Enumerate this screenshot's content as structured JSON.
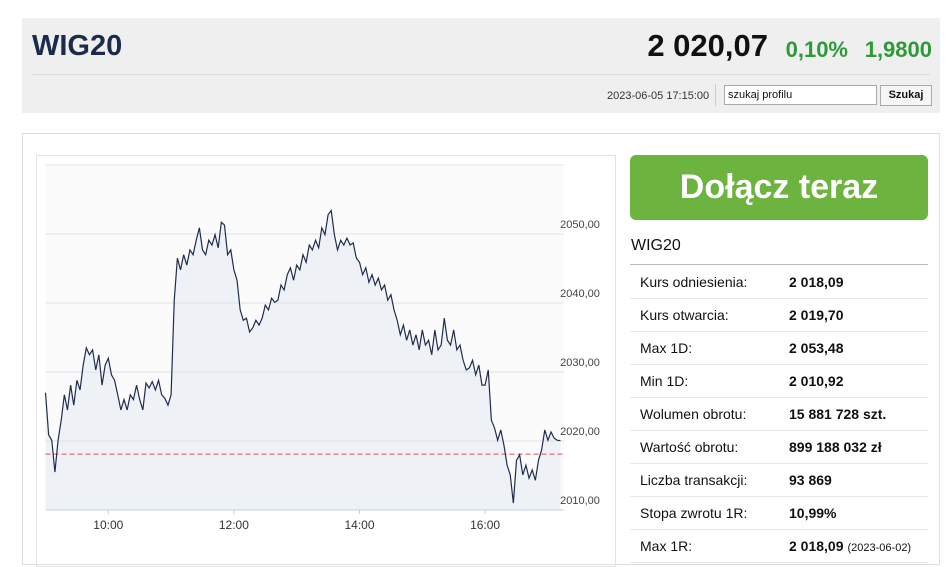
{
  "header": {
    "title": "WIG20",
    "price": "2 020,07",
    "change_pct": "0,10%",
    "change": "1,9800",
    "timestamp": "2023-06-05 17:15:00",
    "search_text": "szukaj profilu",
    "search_button": "Szukaj"
  },
  "cta": "Dołącz teraz",
  "stats": {
    "title": "WIG20",
    "rows": [
      {
        "label": "Kurs odniesienia:",
        "value": "2 018,09"
      },
      {
        "label": "Kurs otwarcia:",
        "value": "2 019,70"
      },
      {
        "label": "Max 1D:",
        "value": "2 053,48"
      },
      {
        "label": "Min 1D:",
        "value": "2 010,92"
      },
      {
        "label": "Wolumen obrotu:",
        "value": "15 881 728 szt."
      },
      {
        "label": "Wartość obrotu:",
        "value": "899 188 032 zł"
      },
      {
        "label": "Liczba transakcji:",
        "value": "93 869"
      },
      {
        "label": "Stopa zwrotu 1R:",
        "value": "10,99%"
      },
      {
        "label": "Max 1R:",
        "value": "2 018,09",
        "note": "(2023-06-02)"
      }
    ]
  },
  "chart_data": {
    "type": "line",
    "x": [
      540,
      543,
      546,
      549,
      552,
      555,
      558,
      561,
      564,
      567,
      570,
      573,
      576,
      579,
      582,
      585,
      588,
      591,
      594,
      597,
      600,
      603,
      606,
      609,
      612,
      615,
      618,
      621,
      624,
      627,
      630,
      633,
      636,
      639,
      642,
      645,
      648,
      651,
      654,
      657,
      660,
      663,
      666,
      669,
      672,
      675,
      678,
      681,
      684,
      687,
      690,
      693,
      696,
      699,
      702,
      705,
      708,
      711,
      714,
      717,
      720,
      723,
      726,
      729,
      732,
      735,
      738,
      741,
      744,
      747,
      750,
      753,
      756,
      759,
      762,
      765,
      768,
      771,
      774,
      777,
      780,
      783,
      786,
      789,
      792,
      795,
      798,
      801,
      804,
      807,
      810,
      813,
      816,
      819,
      822,
      825,
      828,
      831,
      834,
      837,
      840,
      843,
      846,
      849,
      852,
      855,
      858,
      861,
      864,
      867,
      870,
      873,
      876,
      879,
      882,
      885,
      888,
      891,
      894,
      897,
      900,
      903,
      906,
      909,
      912,
      915,
      918,
      921,
      924,
      927,
      930,
      933,
      936,
      939,
      942,
      945,
      948,
      951,
      954,
      957,
      960,
      963,
      966,
      969,
      972,
      975,
      978,
      981,
      984,
      987,
      990,
      993,
      996,
      999,
      1002,
      1005,
      1008,
      1011,
      1014,
      1017,
      1020,
      1023,
      1026,
      1029,
      1032
    ],
    "series": [
      {
        "name": "WIG20",
        "color": "#1f2d4d",
        "values": [
          2027.0,
          2020.9,
          2020.1,
          2015.5,
          2020.1,
          2023.0,
          2026.7,
          2024.5,
          2028.1,
          2025.2,
          2028.8,
          2027.4,
          2031.0,
          2033.5,
          2032.5,
          2033.2,
          2030.3,
          2032.5,
          2028.1,
          2031.0,
          2032.0,
          2029.6,
          2028.8,
          2026.7,
          2024.5,
          2026.0,
          2024.5,
          2026.7,
          2026.0,
          2028.1,
          2026.0,
          2024.5,
          2028.4,
          2027.7,
          2028.6,
          2027.4,
          2028.8,
          2026.7,
          2026.2,
          2025.2,
          2026.7,
          2040.4,
          2046.5,
          2044.8,
          2047.0,
          2045.5,
          2047.7,
          2047.0,
          2049.1,
          2050.9,
          2047.7,
          2047.0,
          2049.1,
          2048.4,
          2049.9,
          2048.0,
          2051.7,
          2051.3,
          2047.0,
          2047.7,
          2044.8,
          2043.3,
          2039.0,
          2037.5,
          2037.8,
          2035.8,
          2036.4,
          2037.5,
          2036.8,
          2037.8,
          2039.7,
          2039.0,
          2040.7,
          2040.1,
          2040.4,
          2042.6,
          2041.9,
          2044.1,
          2045.1,
          2043.3,
          2045.5,
          2044.8,
          2047.0,
          2045.9,
          2048.4,
          2047.7,
          2049.1,
          2048.0,
          2050.9,
          2049.9,
          2052.8,
          2053.4,
          2049.9,
          2047.7,
          2049.1,
          2048.4,
          2049.4,
          2048.4,
          2048.7,
          2046.5,
          2045.9,
          2044.1,
          2045.1,
          2043.0,
          2044.1,
          2042.6,
          2043.6,
          2041.9,
          2042.6,
          2040.4,
          2041.2,
          2039.0,
          2037.5,
          2035.4,
          2036.8,
          2034.6,
          2036.1,
          2033.9,
          2035.4,
          2033.2,
          2036.1,
          2033.9,
          2034.6,
          2032.5,
          2036.1,
          2033.2,
          2033.9,
          2037.8,
          2034.6,
          2033.9,
          2036.1,
          2033.2,
          2033.9,
          2031.7,
          2030.3,
          2030.6,
          2031.7,
          2029.6,
          2031.0,
          2028.1,
          2028.1,
          2030.3,
          2023.0,
          2021.9,
          2020.1,
          2021.6,
          2019.4,
          2016.5,
          2015.1,
          2011.0,
          2017.2,
          2018.0,
          2015.1,
          2016.5,
          2014.6,
          2015.8,
          2014.3,
          2017.2,
          2018.7,
          2021.6,
          2020.1,
          2021.3,
          2020.4,
          2020.1,
          2020.07
        ]
      }
    ],
    "reference_line": 2018.09,
    "reference_color": "#d9534f",
    "xlim": [
      540,
      1035
    ],
    "xticks": [
      {
        "value": 600,
        "label": "10:00"
      },
      {
        "value": 720,
        "label": "12:00"
      },
      {
        "value": 840,
        "label": "14:00"
      },
      {
        "value": 960,
        "label": "16:00"
      }
    ],
    "ylim": [
      2010,
      2060
    ],
    "yticks": [
      {
        "value": 2010,
        "label": "2010,00"
      },
      {
        "value": 2020,
        "label": "2020,00"
      },
      {
        "value": 2030,
        "label": "2030,00"
      },
      {
        "value": 2040,
        "label": "2040,00"
      },
      {
        "value": 2050,
        "label": "2050,00"
      }
    ],
    "grid": true
  }
}
